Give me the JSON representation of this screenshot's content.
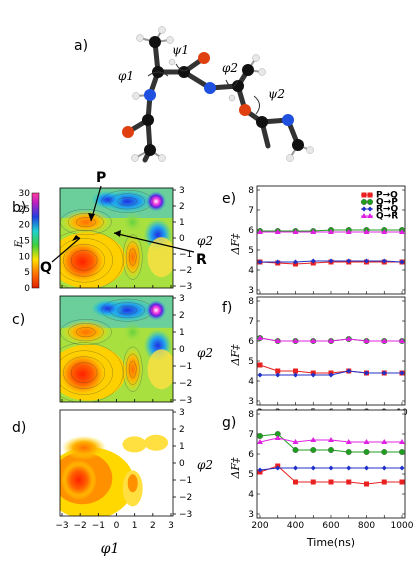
{
  "figure": {
    "panel_labels": [
      "a)",
      "b)",
      "c)",
      "d)",
      "e)",
      "f)",
      "g)"
    ],
    "molecule": {
      "torsion_labels": [
        "ψ1",
        "φ1",
        "φ2",
        "ψ2"
      ]
    },
    "free_energy_maps": {
      "colorbar_label": "F",
      "colorbar_ticks": [
        "30",
        "25",
        "20",
        "15",
        "10",
        "5",
        "0"
      ],
      "ylabel": "φ2",
      "xlabel": "φ1",
      "y_ticks": [
        "3",
        "2",
        "1",
        "0",
        "−1",
        "−2",
        "−3"
      ],
      "x_ticks": [
        "−3",
        "−2",
        "−1",
        "0",
        "1",
        "2",
        "3"
      ],
      "state_labels": [
        "P",
        "Q",
        "R"
      ]
    },
    "barrier_plots": {
      "ylabel": "ΔF‡",
      "y_ticks": [
        "8",
        "7",
        "6",
        "5",
        "4",
        "3"
      ],
      "x_label": "Time(ns)",
      "legend": [
        {
          "label": "P→Q",
          "color": "#e82020",
          "marker": "square"
        },
        {
          "label": "Q→P",
          "color": "#1e9e1e",
          "marker": "circle"
        },
        {
          "label": "R→Q",
          "color": "#2030c8",
          "marker": "diamond"
        },
        {
          "label": "Q→R",
          "color": "#e020e0",
          "marker": "triangle"
        }
      ]
    }
  },
  "chart_data": [
    {
      "type": "line",
      "panel": "e)",
      "ylabel": "ΔF‡",
      "ylim": [
        3,
        8
      ],
      "xlim": [
        2,
        10
      ],
      "series": [
        {
          "name": "P→Q",
          "color": "#e82020",
          "x": [
            2,
            3,
            4,
            5,
            6,
            7,
            8,
            9,
            10
          ],
          "values": [
            4.4,
            4.35,
            4.3,
            4.35,
            4.4,
            4.4,
            4.4,
            4.4,
            4.4
          ]
        },
        {
          "name": "Q→P",
          "color": "#1e9e1e",
          "x": [
            2,
            3,
            4,
            5,
            6,
            7,
            8,
            9,
            10
          ],
          "values": [
            5.95,
            5.95,
            5.95,
            5.95,
            6.0,
            6.0,
            6.0,
            6.0,
            6.0
          ]
        },
        {
          "name": "R→Q",
          "color": "#2030c8",
          "x": [
            2,
            3,
            4,
            5,
            6,
            7,
            8,
            9,
            10
          ],
          "values": [
            4.4,
            4.4,
            4.4,
            4.45,
            4.45,
            4.45,
            4.45,
            4.45,
            4.4
          ]
        },
        {
          "name": "Q→R",
          "color": "#e020e0",
          "x": [
            2,
            3,
            4,
            5,
            6,
            7,
            8,
            9,
            10
          ],
          "values": [
            5.9,
            5.9,
            5.9,
            5.9,
            5.9,
            5.9,
            5.9,
            5.9,
            5.9
          ]
        }
      ]
    },
    {
      "type": "line",
      "panel": "f)",
      "ylabel": "ΔF‡",
      "ylim": [
        3,
        8
      ],
      "x_ticks": [
        "2",
        "3",
        "4",
        "5",
        "6",
        "7",
        "8",
        "9",
        "10"
      ],
      "xlim": [
        2,
        10
      ],
      "series": [
        {
          "name": "P→Q",
          "color": "#e82020",
          "x": [
            2,
            3,
            4,
            5,
            6,
            7,
            8,
            9,
            10
          ],
          "values": [
            4.8,
            4.5,
            4.5,
            4.4,
            4.4,
            4.5,
            4.4,
            4.4,
            4.4
          ]
        },
        {
          "name": "Q→P",
          "color": "#1e9e1e",
          "x": [
            2,
            3,
            4,
            5,
            6,
            7,
            8,
            9,
            10
          ],
          "values": [
            6.15,
            6.0,
            6.0,
            6.0,
            6.0,
            6.1,
            6.0,
            6.0,
            6.0
          ]
        },
        {
          "name": "R→Q",
          "color": "#2030c8",
          "x": [
            2,
            3,
            4,
            5,
            6,
            7,
            8,
            9,
            10
          ],
          "values": [
            4.3,
            4.3,
            4.3,
            4.3,
            4.3,
            4.5,
            4.4,
            4.4,
            4.4
          ]
        },
        {
          "name": "Q→R",
          "color": "#e020e0",
          "x": [
            2,
            3,
            4,
            5,
            6,
            7,
            8,
            9,
            10
          ],
          "values": [
            6.15,
            6.0,
            6.0,
            6.0,
            6.0,
            6.1,
            6.0,
            6.0,
            6.0
          ]
        }
      ]
    },
    {
      "type": "line",
      "panel": "g)",
      "ylabel": "ΔF‡",
      "ylim": [
        3,
        8
      ],
      "x_ticks": [
        "200",
        "400",
        "600",
        "800",
        "1000"
      ],
      "xlabel": "Time(ns)",
      "xlim": [
        200,
        1000
      ],
      "series": [
        {
          "name": "P→Q",
          "color": "#e82020",
          "x": [
            200,
            300,
            400,
            500,
            600,
            700,
            800,
            900,
            1000
          ],
          "values": [
            5.1,
            5.4,
            4.6,
            4.6,
            4.6,
            4.6,
            4.5,
            4.6,
            4.6
          ]
        },
        {
          "name": "Q→P",
          "color": "#1e9e1e",
          "x": [
            200,
            300,
            400,
            500,
            600,
            700,
            800,
            900,
            1000
          ],
          "values": [
            6.9,
            7.0,
            6.2,
            6.2,
            6.2,
            6.1,
            6.1,
            6.1,
            6.1
          ]
        },
        {
          "name": "R→Q",
          "color": "#2030c8",
          "x": [
            200,
            300,
            400,
            500,
            600,
            700,
            800,
            900,
            1000
          ],
          "values": [
            5.2,
            5.3,
            5.3,
            5.3,
            5.3,
            5.3,
            5.3,
            5.3,
            5.3
          ]
        },
        {
          "name": "Q→R",
          "color": "#e020e0",
          "x": [
            200,
            300,
            400,
            500,
            600,
            700,
            800,
            900,
            1000
          ],
          "values": [
            6.6,
            6.8,
            6.6,
            6.7,
            6.7,
            6.6,
            6.6,
            6.6,
            6.6
          ]
        }
      ]
    }
  ]
}
